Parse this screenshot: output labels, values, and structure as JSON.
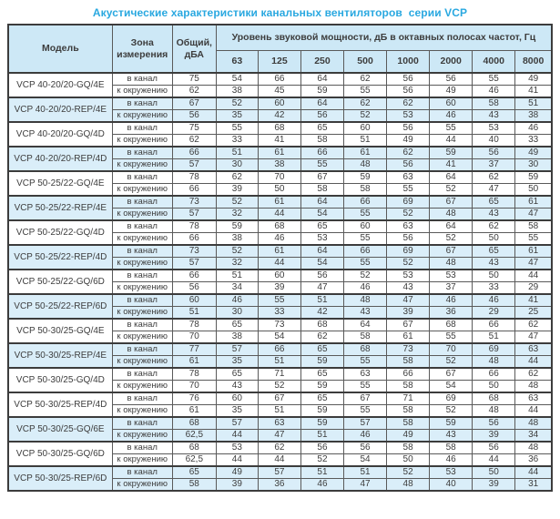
{
  "title": "Акустические характеристики канальных вентиляторов  серии VCP",
  "colors": {
    "accent_title": "#29a8e0",
    "header_bg": "#cde8f6",
    "shaded_row_bg": "#daeef9",
    "border": "#3c3c3c"
  },
  "table": {
    "headers": {
      "model": "Модель",
      "zone": "Зона измерения",
      "total": "Общий, дБА",
      "spl": "Уровень звуковой мощности, дБ в октавных полосах частот, Гц",
      "frequencies": [
        "63",
        "125",
        "250",
        "500",
        "1000",
        "2000",
        "4000",
        "8000"
      ]
    },
    "groups": [
      {
        "model": "VCP 40-20/20-GQ/4E",
        "shaded": false,
        "rows": [
          {
            "zone": "в канал",
            "total": "75",
            "levels": [
              "54",
              "66",
              "64",
              "62",
              "56",
              "56",
              "55",
              "49"
            ]
          },
          {
            "zone": "к окружению",
            "total": "62",
            "levels": [
              "38",
              "45",
              "59",
              "55",
              "56",
              "49",
              "46",
              "41"
            ]
          }
        ]
      },
      {
        "model": "VCP 40-20/20-REP/4E",
        "shaded": true,
        "rows": [
          {
            "zone": "в канал",
            "total": "67",
            "levels": [
              "52",
              "60",
              "64",
              "62",
              "62",
              "60",
              "58",
              "51"
            ]
          },
          {
            "zone": "к окружению",
            "total": "56",
            "levels": [
              "35",
              "42",
              "56",
              "52",
              "53",
              "46",
              "43",
              "38"
            ]
          }
        ]
      },
      {
        "model": "VCP 40-20/20-GQ/4D",
        "shaded": false,
        "rows": [
          {
            "zone": "в канал",
            "total": "75",
            "levels": [
              "55",
              "68",
              "65",
              "60",
              "56",
              "55",
              "53",
              "46"
            ]
          },
          {
            "zone": "к окружению",
            "total": "62",
            "levels": [
              "33",
              "41",
              "58",
              "51",
              "49",
              "44",
              "40",
              "33"
            ]
          }
        ]
      },
      {
        "model": "VCP 40-20/20-REP/4D",
        "shaded": true,
        "rows": [
          {
            "zone": "в канал",
            "total": "66",
            "levels": [
              "51",
              "61",
              "66",
              "61",
              "62",
              "59",
              "56",
              "49"
            ]
          },
          {
            "zone": "к окружению",
            "total": "57",
            "levels": [
              "30",
              "38",
              "55",
              "48",
              "56",
              "41",
              "37",
              "30"
            ]
          }
        ]
      },
      {
        "model": "VCP 50-25/22-GQ/4E",
        "shaded": false,
        "rows": [
          {
            "zone": "в канал",
            "total": "78",
            "levels": [
              "62",
              "70",
              "67",
              "59",
              "63",
              "64",
              "62",
              "59"
            ]
          },
          {
            "zone": "к окружению",
            "total": "66",
            "levels": [
              "39",
              "50",
              "58",
              "58",
              "55",
              "52",
              "47",
              "50"
            ]
          }
        ]
      },
      {
        "model": "VCP 50-25/22-REP/4E",
        "shaded": true,
        "rows": [
          {
            "zone": "в канал",
            "total": "73",
            "levels": [
              "52",
              "61",
              "64",
              "66",
              "69",
              "67",
              "65",
              "61"
            ]
          },
          {
            "zone": "к окружению",
            "total": "57",
            "levels": [
              "32",
              "44",
              "54",
              "55",
              "52",
              "48",
              "43",
              "47"
            ]
          }
        ]
      },
      {
        "model": "VCP 50-25/22-GQ/4D",
        "shaded": false,
        "rows": [
          {
            "zone": "в канал",
            "total": "78",
            "levels": [
              "59",
              "68",
              "65",
              "60",
              "63",
              "64",
              "62",
              "58"
            ]
          },
          {
            "zone": "к окружению",
            "total": "66",
            "levels": [
              "38",
              "46",
              "53",
              "55",
              "56",
              "52",
              "50",
              "55"
            ]
          }
        ]
      },
      {
        "model": "VCP 50-25/22-REP/4D",
        "shaded": true,
        "rows": [
          {
            "zone": "в канал",
            "total": "73",
            "levels": [
              "52",
              "61",
              "64",
              "66",
              "69",
              "67",
              "65",
              "61"
            ]
          },
          {
            "zone": "к окружению",
            "total": "57",
            "levels": [
              "32",
              "44",
              "54",
              "55",
              "52",
              "48",
              "43",
              "47"
            ]
          }
        ]
      },
      {
        "model": "VCP 50-25/22-GQ/6D",
        "shaded": false,
        "rows": [
          {
            "zone": "в канал",
            "total": "66",
            "levels": [
              "51",
              "60",
              "56",
              "52",
              "53",
              "53",
              "50",
              "44"
            ]
          },
          {
            "zone": "к окружению",
            "total": "56",
            "levels": [
              "34",
              "39",
              "47",
              "46",
              "43",
              "37",
              "33",
              "29"
            ]
          }
        ]
      },
      {
        "model": "VCP 50-25/22-REP/6D",
        "shaded": true,
        "rows": [
          {
            "zone": "в канал",
            "total": "60",
            "levels": [
              "46",
              "55",
              "51",
              "48",
              "47",
              "46",
              "46",
              "41"
            ]
          },
          {
            "zone": "к окружению",
            "total": "51",
            "levels": [
              "30",
              "33",
              "42",
              "43",
              "39",
              "36",
              "29",
              "25"
            ]
          }
        ]
      },
      {
        "model": "VCP 50-30/25-GQ/4E",
        "shaded": false,
        "rows": [
          {
            "zone": "в канал",
            "total": "78",
            "levels": [
              "65",
              "73",
              "68",
              "64",
              "67",
              "68",
              "66",
              "62"
            ]
          },
          {
            "zone": "к окружению",
            "total": "70",
            "levels": [
              "38",
              "54",
              "62",
              "58",
              "61",
              "55",
              "51",
              "47"
            ]
          }
        ]
      },
      {
        "model": "VCP 50-30/25-REP/4E",
        "shaded": true,
        "rows": [
          {
            "zone": "в канал",
            "total": "77",
            "levels": [
              "57",
              "66",
              "65",
              "68",
              "73",
              "70",
              "69",
              "63"
            ]
          },
          {
            "zone": "к окружению",
            "total": "61",
            "levels": [
              "35",
              "51",
              "59",
              "55",
              "58",
              "52",
              "48",
              "44"
            ]
          }
        ]
      },
      {
        "model": "VCP 50-30/25-GQ/4D",
        "shaded": false,
        "rows": [
          {
            "zone": "в канал",
            "total": "78",
            "levels": [
              "65",
              "71",
              "65",
              "63",
              "66",
              "67",
              "66",
              "62"
            ]
          },
          {
            "zone": "к окружению",
            "total": "70",
            "levels": [
              "43",
              "52",
              "59",
              "55",
              "58",
              "54",
              "50",
              "48"
            ]
          }
        ]
      },
      {
        "model": "VCP 50-30/25-REP/4D",
        "shaded": false,
        "rows": [
          {
            "zone": "в канал",
            "total": "76",
            "levels": [
              "60",
              "67",
              "65",
              "67",
              "71",
              "69",
              "68",
              "63"
            ]
          },
          {
            "zone": "к окружению",
            "total": "61",
            "levels": [
              "35",
              "51",
              "59",
              "55",
              "58",
              "52",
              "48",
              "44"
            ]
          }
        ]
      },
      {
        "model": "VCP 50-30/25-GQ/6E",
        "shaded": true,
        "rows": [
          {
            "zone": "в канал",
            "total": "68",
            "levels": [
              "57",
              "63",
              "59",
              "57",
              "58",
              "59",
              "56",
              "48"
            ]
          },
          {
            "zone": "к окружению",
            "total": "62,5",
            "levels": [
              "44",
              "47",
              "51",
              "46",
              "49",
              "43",
              "39",
              "34"
            ]
          }
        ]
      },
      {
        "model": "VCP 50-30/25-GQ/6D",
        "shaded": false,
        "rows": [
          {
            "zone": "в канал",
            "total": "68",
            "levels": [
              "53",
              "62",
              "56",
              "56",
              "58",
              "58",
              "56",
              "48"
            ]
          },
          {
            "zone": "к окружению",
            "total": "62,5",
            "levels": [
              "44",
              "44",
              "52",
              "54",
              "50",
              "46",
              "44",
              "36"
            ]
          }
        ]
      },
      {
        "model": "VCP 50-30/25-REP/6D",
        "shaded": true,
        "rows": [
          {
            "zone": "в канал",
            "total": "65",
            "levels": [
              "49",
              "57",
              "51",
              "51",
              "52",
              "53",
              "50",
              "44"
            ]
          },
          {
            "zone": "к окружению",
            "total": "58",
            "levels": [
              "39",
              "36",
              "46",
              "47",
              "48",
              "40",
              "39",
              "31"
            ]
          }
        ]
      }
    ]
  }
}
